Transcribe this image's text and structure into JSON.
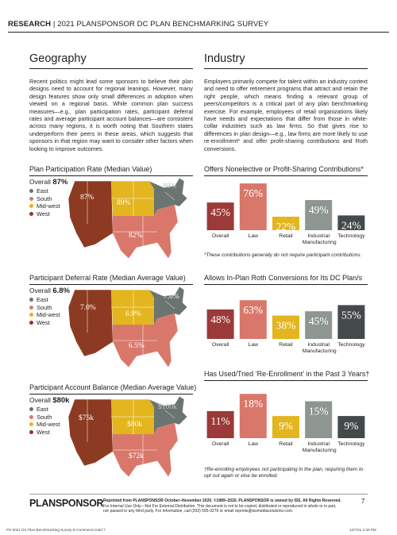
{
  "header": {
    "bold": "RESEARCH",
    "separator": "|",
    "title": "2021 PLANSPONSOR DC PLAN BENCHMARKING SURVEY"
  },
  "geography": {
    "title": "Geography",
    "body": "Recent politics might lead some sponsors to believe their plan designs need to account for regional leanings. However, many design features show only small differences in adoption when viewed on a regional basis. While common plan success measures—e.g., plan participation rates, participant deferral rates and average participant account balances—are consistent across many regions, it is worth noting that Southern states underperform their peers in these areas, which suggests that sponsors in that region may want to consider other factors when looking to improve outcomes."
  },
  "industry": {
    "title": "Industry",
    "body": "Employers primarily compete for talent within an industry context and need to offer retirement programs that attract and retain the right people, which means finding a relevant group of peers/competitors is a critical part of any plan benchmarking exercise. For example, employees of retail organizations likely have needs and expectations that differ from those in white-collar industries such as law firms. So that gives rise to differences in plan design—e.g., law firms are more likely to use re-enrollment* and offer profit-sharing contributions and Roth conversions."
  },
  "colors": {
    "east": "#6b7470",
    "south": "#d9786a",
    "midwest": "#e3b51f",
    "west": "#8c3a22",
    "overall": "#9b3a38",
    "law": "#d9786a",
    "retail": "#e3b51f",
    "industrial": "#8d968f",
    "technology": "#44494b"
  },
  "legend": {
    "east": "East",
    "south": "South",
    "midwest": "Mid-west",
    "west": "West"
  },
  "maps": [
    {
      "title": "Plan Participation Rate (Median Value)",
      "overall_label": "Overall",
      "overall_value": "87%",
      "west": "87%",
      "midwest": "89%",
      "east": "88%",
      "south": "82%"
    },
    {
      "title": "Participant Deferral Rate (Median Average Value)",
      "overall_label": "Overall",
      "overall_value": "6.8%",
      "west": "7.0%",
      "midwest": "6.9%",
      "east": "7.0%",
      "south": "6.5%"
    },
    {
      "title": "Participant Account Balance (Median Average Value)",
      "overall_label": "Overall",
      "overall_value": "$80k",
      "west": "$75k",
      "midwest": "$80k",
      "east": "$100k",
      "south": "$72k"
    }
  ],
  "chart_data": [
    {
      "type": "bar",
      "title": "Offers Nonelective or Profit-Sharing Contributions*",
      "categories": [
        "Overall",
        "Law",
        "Retail",
        "Industrial Manufacturing",
        "Technology"
      ],
      "values": [
        45,
        76,
        22,
        49,
        24
      ],
      "labels": [
        "45%",
        "76%",
        "22%",
        "49%",
        "24%"
      ],
      "ylim": [
        0,
        80
      ],
      "note": "*These contributions generally do not require participant contributions."
    },
    {
      "type": "bar",
      "title": "Allows In-Plan Roth Conversions for Its DC Plan/s",
      "categories": [
        "Overall",
        "Law",
        "Retail",
        "Industrial Manufacturing",
        "Technology"
      ],
      "values": [
        48,
        63,
        38,
        45,
        55
      ],
      "labels": [
        "48%",
        "63%",
        "38%",
        "45%",
        "55%"
      ],
      "ylim": [
        0,
        80
      ],
      "note": ""
    },
    {
      "type": "bar",
      "title": "Has Used/Tried ‘Re-Enrollment’ in the Past 3 Years†",
      "categories": [
        "Overall",
        "Law",
        "Retail",
        "Industrial Manufacturing",
        "Technology"
      ],
      "values": [
        11,
        18,
        9,
        15,
        9
      ],
      "labels": [
        "11%",
        "18%",
        "9%",
        "15%",
        "9%"
      ],
      "ylim": [
        0,
        20
      ],
      "note": "†Re-enrolling employees not participating in the plan, requiring them to opt out again or else be enrolled."
    }
  ],
  "footer": {
    "logo": "PLANSPONSOR",
    "line1": "Reprinted from PLANSPONSOR October–November 2020. ©1989–2020. PLANSPONSOR is owned by ISS. All Rights Reserved.",
    "line2": "For Internal Use Only—Not For External Distribution. This document is not to be copied, distributed or reproduced in whole or in part,",
    "line3": "nor passed to any third party. For information, call (203) 595-3276 or email reprints@issmediasolutions.com.",
    "page": "7",
    "slug_left": "PS-2021 DC Plan Benchmarking Survey E-Commerce.indd   7",
    "slug_right": "12/7/21   2:38 PM"
  }
}
